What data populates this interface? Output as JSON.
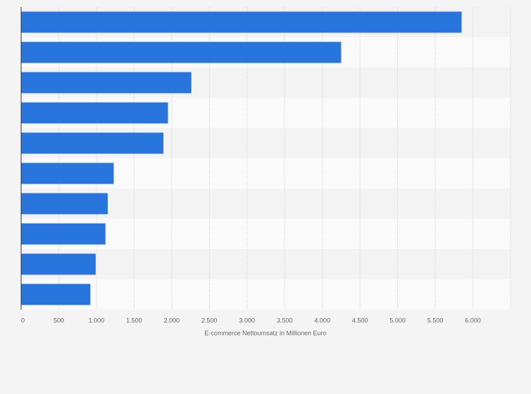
{
  "chart_data": {
    "type": "bar",
    "orientation": "horizontal",
    "categories": [
      null,
      null,
      null,
      null,
      null,
      null,
      null,
      null,
      null,
      null
    ],
    "values": [
      5850,
      4250,
      2260,
      1950,
      1890,
      1230,
      1150,
      1120,
      990,
      920
    ],
    "color": "#2876dd",
    "xlim": [
      0,
      6500
    ],
    "xticks": [
      0,
      500,
      {
        "value": 1000,
        "label": "1.000"
      },
      {
        "value": 1500,
        "label": "1.500"
      },
      {
        "value": 2000,
        "label": "2.000"
      },
      {
        "value": 2500,
        "label": "2.500"
      },
      {
        "value": 3000,
        "label": "3.000"
      },
      {
        "value": 3500,
        "label": "3.500"
      },
      {
        "value": 4000,
        "label": "4.000"
      },
      {
        "value": 4500,
        "label": "4.500"
      },
      {
        "value": 5000,
        "label": "5.000"
      },
      {
        "value": 5500,
        "label": "5.500"
      },
      {
        "value": 6000,
        "label": "6.000"
      }
    ],
    "xlabel": "E-commerce Nettoumsatz in Millionen Euro",
    "grid": true
  }
}
